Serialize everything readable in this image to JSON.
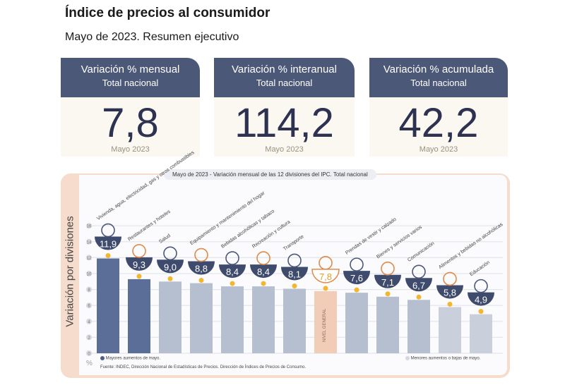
{
  "header": {
    "title": "Índice de precios al consumidor",
    "subtitle": "Mayo de 2023. Resumen ejecutivo"
  },
  "cards": [
    {
      "title": "Variación % mensual",
      "subtitle": "Total nacional",
      "value": "7,8",
      "date": "Mayo 2023"
    },
    {
      "title": "Variación % interanual",
      "subtitle": "Total nacional",
      "value": "114,2",
      "date": "Mayo 2023"
    },
    {
      "title": "Variación % acumulada",
      "subtitle": "Total nacional",
      "value": "42,2",
      "date": "Mayo 2023"
    }
  ],
  "chart_data": {
    "type": "bar",
    "title": "Mayo de 2023 - Variación mensual de las 12 divisiones del IPC. Total nacional",
    "ylabel": "Variación por divisiones",
    "yunit": "%",
    "ylim": [
      0,
      16
    ],
    "yticks": [
      0,
      2,
      4,
      6,
      8,
      10,
      12,
      14,
      16
    ],
    "grid": true,
    "categories": [
      "Vivienda, agua, electricidad, gas y otros combustibles",
      "Restaurantes y hoteles",
      "Salud",
      "Equipamiento y mantenimiento del hogar",
      "Bebidas alcohólicas y tabaco",
      "Recreación y cultura",
      "Transporte",
      "Nivel general",
      "Prendas de vestir y calzado",
      "Bienes y servicios varios",
      "Comunicación",
      "Alimentos y bebidas no alcohólicas",
      "Educación"
    ],
    "values": [
      11.9,
      9.3,
      9.0,
      8.8,
      8.4,
      8.4,
      8.1,
      7.8,
      7.6,
      7.1,
      6.7,
      5.8,
      4.9
    ],
    "value_labels": [
      "11,9",
      "9,3",
      "9,0",
      "8,8",
      "8,4",
      "8,4",
      "8,1",
      "7,8",
      "7,6",
      "7,1",
      "6,7",
      "5,8",
      "4,9"
    ],
    "bar_label_general": "NIVEL GENERAL",
    "legend": [
      {
        "label": "Mayores aumentos de mayo.",
        "color": "#4c5f8a"
      },
      {
        "label": "Menores aumentos o bajas de mayo.",
        "color": "#d4d8e0"
      }
    ],
    "legend_placement": "bottom",
    "source": "Fuente: INDEC, Dirección Nacional de Estadísticas de Precios. Dirección de Índices de Precios de Consumo.",
    "colors": {
      "high": "#5a6e97",
      "mid": "#b5bfcf",
      "low": "#c9d0dc",
      "general": "#f1cdb8",
      "dot": "#f2b630",
      "bowl": "#3f4b6c"
    }
  }
}
